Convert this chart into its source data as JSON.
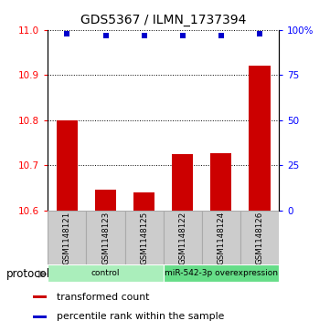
{
  "title": "GDS5367 / ILMN_1737394",
  "samples": [
    "GSM1148121",
    "GSM1148123",
    "GSM1148125",
    "GSM1148122",
    "GSM1148124",
    "GSM1148126"
  ],
  "transformed_counts": [
    10.8,
    10.645,
    10.64,
    10.725,
    10.727,
    10.92
  ],
  "percentile_ranks": [
    98,
    97,
    97,
    97,
    97,
    98
  ],
  "ylim_left": [
    10.6,
    11.0
  ],
  "yticks_left": [
    10.6,
    10.7,
    10.8,
    10.9,
    11.0
  ],
  "ylim_right": [
    0,
    100
  ],
  "yticks_right": [
    0,
    25,
    50,
    75,
    100
  ],
  "yticklabels_right": [
    "0",
    "25",
    "50",
    "75",
    "100%"
  ],
  "bar_color": "#cc0000",
  "dot_color": "#0000cc",
  "bar_bottom": 10.6,
  "groups": [
    {
      "label": "control",
      "indices": [
        0,
        1,
        2
      ],
      "color": "#aaeebb"
    },
    {
      "label": "miR-542-3p overexpression",
      "indices": [
        3,
        4,
        5
      ],
      "color": "#66dd88"
    }
  ],
  "protocol_label": "protocol",
  "legend_items": [
    {
      "color": "#cc0000",
      "label": "transformed count"
    },
    {
      "color": "#0000cc",
      "label": "percentile rank within the sample"
    }
  ],
  "grid_color": "black",
  "sample_box_color": "#cccccc",
  "sample_box_edge": "#aaaaaa"
}
